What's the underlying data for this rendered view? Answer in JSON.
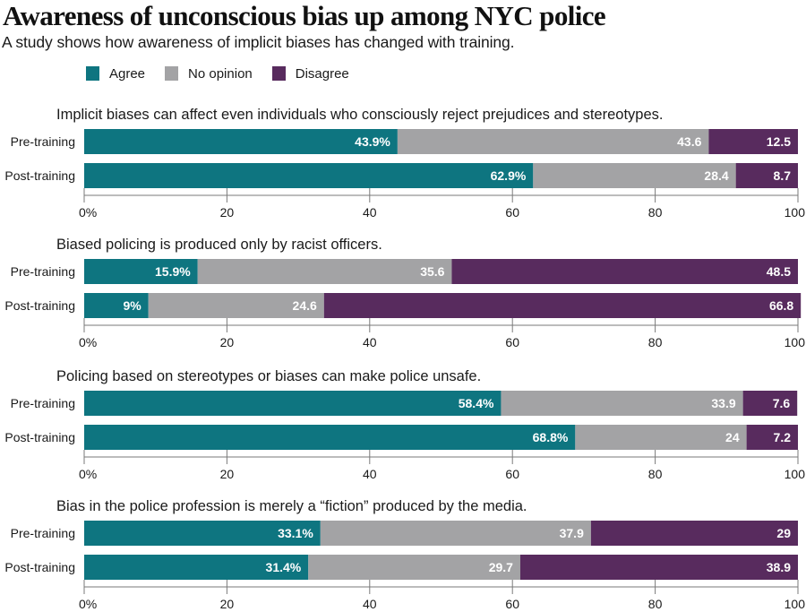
{
  "title": "Awareness of unconscious bias up among NYC police",
  "subtitle": "A study shows how awareness of implicit biases has changed with training.",
  "legend": [
    {
      "label": "Agree",
      "color": "#0e7580"
    },
    {
      "label": "No opinion",
      "color": "#a3a3a5"
    },
    {
      "label": "Disagree",
      "color": "#582b5e"
    }
  ],
  "chart_data": {
    "type": "bar",
    "orientation": "horizontal-stacked-100",
    "title": "Awareness of unconscious bias up among NYC police",
    "subtitle": "A study shows how awareness of implicit biases has changed with training.",
    "series_names": [
      "Agree",
      "No opinion",
      "Disagree"
    ],
    "colors": [
      "#0e7580",
      "#a3a3a5",
      "#582b5e"
    ],
    "legend_position": "top-left",
    "xlim": [
      0,
      100
    ],
    "x_ticks": [
      "0%",
      "20",
      "40",
      "60",
      "80",
      "100"
    ],
    "x_tick_values": [
      0,
      20,
      40,
      60,
      80,
      100
    ],
    "grid": false,
    "panels": [
      {
        "question": "Implicit biases can affect even individuals who consciously reject prejudices and stereotypes.",
        "categories": [
          "Pre-training",
          "Post-training"
        ],
        "rows": [
          {
            "category": "Pre-training",
            "values": [
              43.9,
              43.6,
              12.5
            ],
            "labels": [
              "43.9%",
              "43.6",
              "12.5"
            ]
          },
          {
            "category": "Post-training",
            "values": [
              62.9,
              28.4,
              8.7
            ],
            "labels": [
              "62.9%",
              "28.4",
              "8.7"
            ]
          }
        ]
      },
      {
        "question": "Biased policing is produced only by racist officers.",
        "categories": [
          "Pre-training",
          "Post-training"
        ],
        "rows": [
          {
            "category": "Pre-training",
            "values": [
              15.9,
              35.6,
              48.5
            ],
            "labels": [
              "15.9%",
              "35.6",
              "48.5"
            ]
          },
          {
            "category": "Post-training",
            "values": [
              9,
              24.6,
              66.8
            ],
            "labels": [
              "9%",
              "24.6",
              "66.8"
            ]
          }
        ]
      },
      {
        "question": "Policing based on stereotypes or biases can make police unsafe.",
        "categories": [
          "Pre-training",
          "Post-training"
        ],
        "rows": [
          {
            "category": "Pre-training",
            "values": [
              58.4,
              33.9,
              7.6
            ],
            "labels": [
              "58.4%",
              "33.9",
              "7.6"
            ]
          },
          {
            "category": "Post-training",
            "values": [
              68.8,
              24,
              7.2
            ],
            "labels": [
              "68.8%",
              "24",
              "7.2"
            ]
          }
        ]
      },
      {
        "question": "Bias in the police profession is merely a “fiction” produced by the media.",
        "categories": [
          "Pre-training",
          "Post-training"
        ],
        "rows": [
          {
            "category": "Pre-training",
            "values": [
              33.1,
              37.9,
              29
            ],
            "labels": [
              "33.1%",
              "37.9",
              "29"
            ]
          },
          {
            "category": "Post-training",
            "values": [
              31.4,
              29.7,
              38.9
            ],
            "labels": [
              "31.4%",
              "29.7",
              "38.9"
            ]
          }
        ]
      }
    ]
  }
}
